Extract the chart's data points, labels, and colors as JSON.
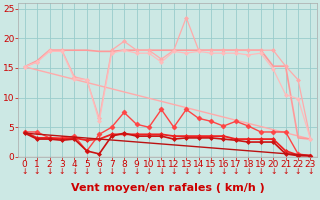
{
  "bg_color": "#cce8e4",
  "grid_color": "#99cccc",
  "xlabel": "Vent moyen/en rafales ( km/h )",
  "xlim": [
    -0.5,
    23.5
  ],
  "ylim": [
    0,
    26
  ],
  "yticks": [
    0,
    5,
    10,
    15,
    20,
    25
  ],
  "xticks": [
    0,
    1,
    2,
    3,
    4,
    5,
    6,
    7,
    8,
    9,
    10,
    11,
    12,
    13,
    14,
    15,
    16,
    17,
    18,
    19,
    20,
    21,
    22,
    23
  ],
  "series": [
    {
      "name": "pink_diagonal",
      "color": "#ffaaaa",
      "lw": 1.0,
      "marker": null,
      "x": [
        0,
        23
      ],
      "y": [
        15.2,
        3.0
      ]
    },
    {
      "name": "pink_smooth_upper",
      "color": "#ff9999",
      "lw": 1.2,
      "marker": null,
      "x": [
        0,
        1,
        2,
        3,
        4,
        5,
        6,
        7,
        8,
        9,
        10,
        11,
        12,
        13,
        14,
        15,
        16,
        17,
        18,
        19,
        20,
        21,
        22,
        23
      ],
      "y": [
        15.2,
        16.2,
        18.0,
        18.0,
        18.0,
        18.0,
        17.8,
        17.8,
        18.0,
        18.0,
        18.0,
        18.0,
        18.0,
        18.0,
        18.0,
        18.0,
        18.0,
        18.0,
        18.0,
        18.0,
        15.3,
        15.3,
        3.2,
        3.0
      ]
    },
    {
      "name": "pink_jagged_markers",
      "color": "#ffaaaa",
      "lw": 0.9,
      "marker": "D",
      "markersize": 2,
      "x": [
        0,
        1,
        2,
        3,
        4,
        5,
        6,
        7,
        8,
        9,
        10,
        11,
        12,
        13,
        14,
        15,
        16,
        17,
        18,
        19,
        20,
        21,
        22,
        23
      ],
      "y": [
        15.2,
        16.0,
        18.0,
        18.0,
        13.5,
        13.0,
        6.5,
        18.0,
        19.5,
        18.0,
        18.0,
        16.5,
        18.0,
        23.5,
        18.0,
        18.0,
        18.0,
        18.0,
        18.0,
        18.0,
        18.0,
        15.3,
        13.0,
        3.0
      ]
    },
    {
      "name": "pink_lower_jagged",
      "color": "#ffbbbb",
      "lw": 0.9,
      "marker": "D",
      "markersize": 2,
      "x": [
        0,
        1,
        2,
        3,
        4,
        5,
        6,
        7,
        8,
        9,
        10,
        11,
        12,
        13,
        14,
        15,
        16,
        17,
        18,
        19,
        20,
        21,
        22,
        23
      ],
      "y": [
        15.2,
        16.0,
        17.8,
        17.8,
        13.2,
        13.0,
        6.0,
        17.5,
        18.0,
        17.5,
        17.5,
        16.0,
        17.8,
        17.5,
        17.8,
        17.5,
        17.5,
        17.5,
        17.2,
        17.5,
        14.8,
        10.5,
        9.8,
        3.0
      ]
    },
    {
      "name": "red_bumpy",
      "color": "#ff4444",
      "lw": 1.0,
      "marker": "D",
      "markersize": 2.5,
      "x": [
        0,
        1,
        2,
        3,
        4,
        5,
        6,
        7,
        8,
        9,
        10,
        11,
        12,
        13,
        14,
        15,
        16,
        17,
        18,
        19,
        20,
        21,
        22,
        23
      ],
      "y": [
        4.2,
        4.2,
        3.2,
        3.2,
        3.5,
        1.0,
        3.8,
        5.0,
        7.5,
        5.5,
        5.0,
        8.0,
        5.0,
        8.0,
        6.5,
        6.0,
        5.2,
        6.0,
        5.2,
        4.2,
        4.2,
        4.2,
        0.5,
        0.2
      ]
    },
    {
      "name": "red_flat1",
      "color": "#ee2222",
      "lw": 1.3,
      "marker": "D",
      "markersize": 2,
      "x": [
        0,
        1,
        2,
        3,
        4,
        5,
        6,
        7,
        8,
        9,
        10,
        11,
        12,
        13,
        14,
        15,
        16,
        17,
        18,
        19,
        20,
        21,
        22,
        23
      ],
      "y": [
        4.2,
        3.2,
        3.2,
        3.0,
        3.2,
        2.8,
        3.0,
        3.8,
        3.8,
        3.8,
        3.8,
        3.8,
        3.5,
        3.5,
        3.5,
        3.5,
        3.5,
        3.0,
        3.0,
        3.0,
        3.0,
        1.0,
        0.3,
        0.2
      ]
    },
    {
      "name": "darkred_flat2",
      "color": "#cc1111",
      "lw": 1.2,
      "marker": "D",
      "markersize": 2,
      "x": [
        0,
        1,
        2,
        3,
        4,
        5,
        6,
        7,
        8,
        9,
        10,
        11,
        12,
        13,
        14,
        15,
        16,
        17,
        18,
        19,
        20,
        21,
        22,
        23
      ],
      "y": [
        4.0,
        3.0,
        3.0,
        2.8,
        3.0,
        1.0,
        0.5,
        3.5,
        4.0,
        3.5,
        3.5,
        3.5,
        3.0,
        3.2,
        3.2,
        3.2,
        3.0,
        2.8,
        2.5,
        2.5,
        2.5,
        0.5,
        0.2,
        0.2
      ]
    },
    {
      "name": "darkred_diagonal",
      "color": "#bb1111",
      "lw": 1.0,
      "marker": null,
      "x": [
        0,
        23
      ],
      "y": [
        4.0,
        0.2
      ]
    }
  ],
  "xlabel_color": "#cc0000",
  "xlabel_fontsize": 8,
  "tick_color": "#cc0000",
  "tick_fontsize": 6.5,
  "arrow_color": "#cc0000",
  "arrow_fontsize": 5.5
}
